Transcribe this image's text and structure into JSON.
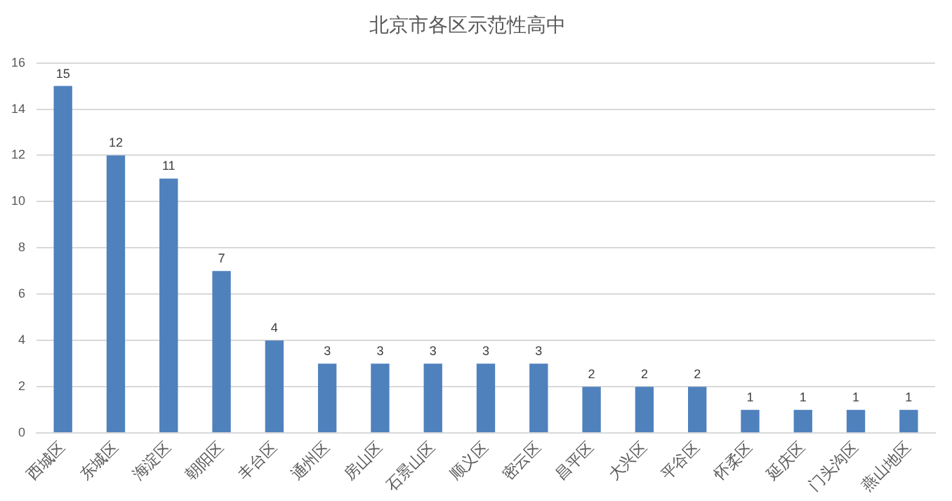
{
  "chart_data": {
    "type": "bar",
    "title": "北京市各区示范性高中",
    "categories": [
      "西城区",
      "东城区",
      "海淀区",
      "朝阳区",
      "丰台区",
      "通州区",
      "房山区",
      "石景山区",
      "顺义区",
      "密云区",
      "昌平区",
      "大兴区",
      "平谷区",
      "怀柔区",
      "延庆区",
      "门头沟区",
      "燕山地区"
    ],
    "values": [
      15,
      12,
      11,
      7,
      4,
      3,
      3,
      3,
      3,
      3,
      2,
      2,
      2,
      1,
      1,
      1,
      1
    ],
    "color": "#4f81bd",
    "ylim": [
      0,
      16
    ],
    "yticks": [
      0,
      2,
      4,
      6,
      8,
      10,
      12,
      14,
      16
    ],
    "grid": "y",
    "data_labels": true,
    "legend": false
  }
}
